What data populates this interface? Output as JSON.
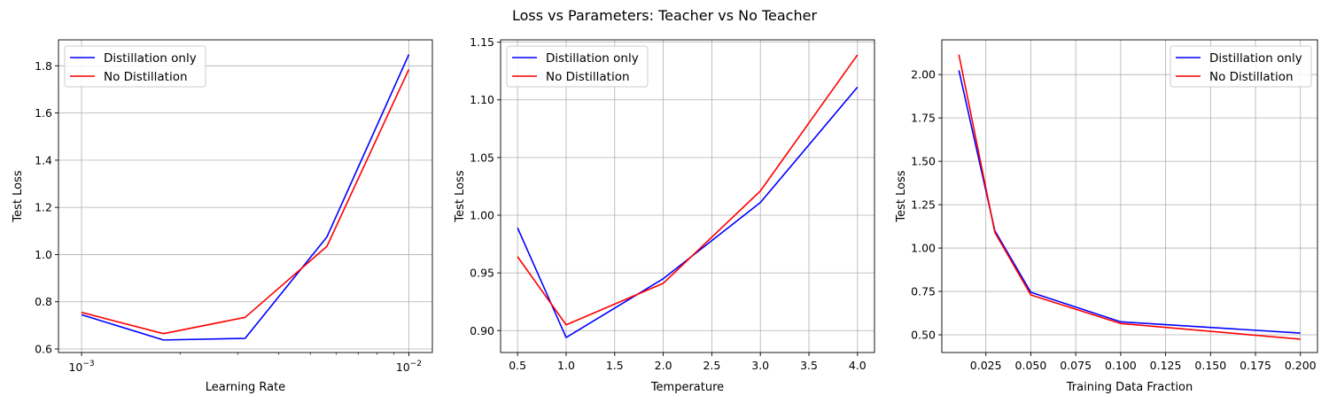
{
  "figure": {
    "title": "Loss vs Parameters: Teacher vs No Teacher"
  },
  "colors": {
    "distillation": "#0000ff",
    "no_distillation": "#ff0000",
    "grid": "#b0b0b0"
  },
  "chart_data": [
    {
      "type": "line",
      "xscale": "log",
      "xlabel": "Learning Rate",
      "ylabel": "Test Loss",
      "xlim": [
        0.00085,
        0.0118
      ],
      "ylim": [
        0.585,
        1.91
      ],
      "grid": true,
      "legend_position": "upper-left",
      "xticks": [
        {
          "value": 0.001,
          "base": "10",
          "exp": "−3"
        },
        {
          "value": 0.01,
          "base": "10",
          "exp": "−2"
        }
      ],
      "minor_xticks": [
        0.002,
        0.003,
        0.004,
        0.005,
        0.006,
        0.007,
        0.008,
        0.009
      ],
      "yticks": [
        0.6,
        0.8,
        1.0,
        1.2,
        1.4,
        1.6,
        1.8
      ],
      "ytick_labels": [
        "0.6",
        "0.8",
        "1.0",
        "1.2",
        "1.4",
        "1.6",
        "1.8"
      ],
      "x": [
        0.001,
        0.00178,
        0.00316,
        0.00562,
        0.01
      ],
      "series": [
        {
          "name": "Distillation only",
          "color": "#0000ff",
          "values": [
            0.745,
            0.638,
            0.645,
            1.075,
            1.848
          ]
        },
        {
          "name": "No Distillation",
          "color": "#ff0000",
          "values": [
            0.755,
            0.665,
            0.734,
            1.035,
            1.785
          ]
        }
      ]
    },
    {
      "type": "line",
      "xscale": "linear",
      "xlabel": "Temperature",
      "ylabel": "Test Loss",
      "xlim": [
        0.325,
        4.175
      ],
      "ylim": [
        0.881,
        1.152
      ],
      "grid": true,
      "legend_position": "upper-left",
      "xticks": [
        0.5,
        1.0,
        1.5,
        2.0,
        2.5,
        3.0,
        3.5,
        4.0
      ],
      "xtick_labels": [
        "0.5",
        "1.0",
        "1.5",
        "2.0",
        "2.5",
        "3.0",
        "3.5",
        "4.0"
      ],
      "yticks": [
        0.9,
        0.95,
        1.0,
        1.05,
        1.1,
        1.15
      ],
      "ytick_labels": [
        "0.90",
        "0.95",
        "1.00",
        "1.05",
        "1.10",
        "1.15"
      ],
      "x": [
        0.5,
        1.0,
        2.0,
        3.0,
        4.0
      ],
      "series": [
        {
          "name": "Distillation only",
          "color": "#0000ff",
          "values": [
            0.989,
            0.894,
            0.945,
            1.011,
            1.111
          ]
        },
        {
          "name": "No Distillation",
          "color": "#ff0000",
          "values": [
            0.964,
            0.905,
            0.941,
            1.021,
            1.139
          ]
        }
      ]
    },
    {
      "type": "line",
      "xscale": "linear",
      "xlabel": "Training Data Fraction",
      "ylabel": "Test Loss",
      "xlim": [
        0.0005,
        0.2095
      ],
      "ylim": [
        0.398,
        2.2
      ],
      "grid": true,
      "legend_position": "upper-right",
      "xticks": [
        0.025,
        0.05,
        0.075,
        0.1,
        0.125,
        0.15,
        0.175,
        0.2
      ],
      "xtick_labels": [
        "0.025",
        "0.050",
        "0.075",
        "0.100",
        "0.125",
        "0.150",
        "0.175",
        "0.200"
      ],
      "yticks": [
        0.5,
        0.75,
        1.0,
        1.25,
        1.5,
        1.75,
        2.0
      ],
      "ytick_labels": [
        "0.50",
        "0.75",
        "1.00",
        "1.25",
        "1.50",
        "1.75",
        "2.00"
      ],
      "x": [
        0.01,
        0.03,
        0.05,
        0.1,
        0.2
      ],
      "series": [
        {
          "name": "Distillation only",
          "color": "#0000ff",
          "values": [
            2.025,
            1.1,
            0.745,
            0.575,
            0.51
          ]
        },
        {
          "name": "No Distillation",
          "color": "#ff0000",
          "values": [
            2.115,
            1.09,
            0.73,
            0.565,
            0.475
          ]
        }
      ]
    }
  ]
}
